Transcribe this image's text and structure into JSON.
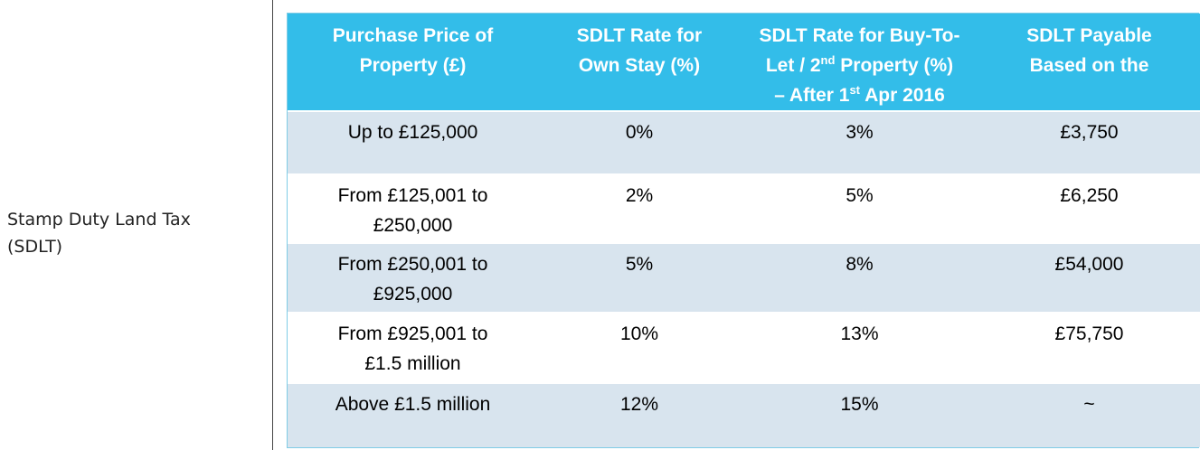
{
  "left": {
    "label_line1": "Stamp Duty Land Tax",
    "label_line2": "(SDLT)"
  },
  "table": {
    "headers": {
      "col1_line1": "Purchase Price of",
      "col1_line2": "Property (£)",
      "col2_line1": "SDLT Rate for",
      "col2_line2": "Own Stay (%)",
      "col3_line1": "SDLT Rate for Buy-To-",
      "col3_line2_a": "Let / 2",
      "col3_line2_sup": "nd",
      "col3_line2_b": " Property (%)",
      "col3_line3_a": "– After 1",
      "col3_line3_sup": "st",
      "col3_line3_b": " Apr 2016",
      "col4_line1": "SDLT Payable",
      "col4_line2": "Based on the"
    },
    "rows": [
      {
        "price_line1": "Up to £125,000",
        "price_line2": "",
        "own": "0%",
        "btl": "3%",
        "payable": "£3,750"
      },
      {
        "price_line1": "From £125,001 to",
        "price_line2": "£250,000",
        "own": "2%",
        "btl": "5%",
        "payable": "£6,250"
      },
      {
        "price_line1": "From £250,001 to",
        "price_line2": "£925,000",
        "own": "5%",
        "btl": "8%",
        "payable": "£54,000"
      },
      {
        "price_line1": "From £925,001 to",
        "price_line2": "£1.5 million",
        "own": "10%",
        "btl": "13%",
        "payable": "£75,750"
      },
      {
        "price_line1": "Above £1.5 million",
        "price_line2": "",
        "own": "12%",
        "btl": "15%",
        "payable": "~"
      }
    ]
  },
  "colors": {
    "header_bg": "#33bde9",
    "row_shade": "#d8e4ee"
  }
}
